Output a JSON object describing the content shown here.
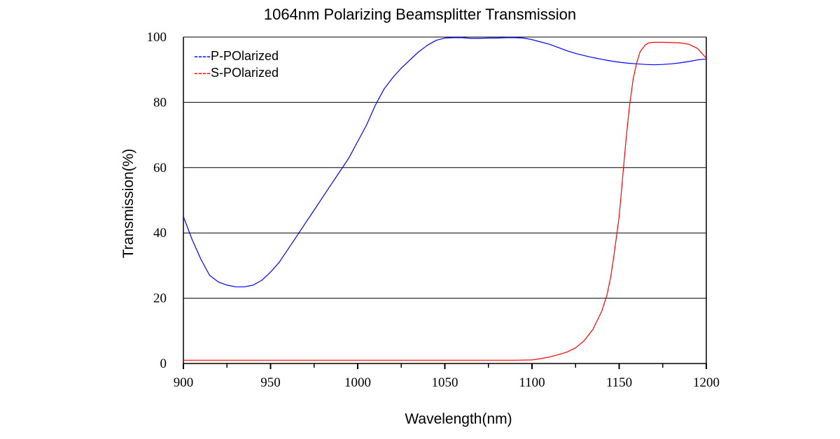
{
  "chart_data": {
    "type": "line",
    "title": "1064nm Polarizing Beamsplitter Transmission",
    "xlabel": "Wavelength(nm)",
    "ylabel": "Transmission(%)",
    "xlim": [
      900,
      1200
    ],
    "ylim": [
      0,
      100
    ],
    "xticks": [
      900,
      950,
      1000,
      1050,
      1100,
      1150,
      1200
    ],
    "yticks": [
      0,
      20,
      40,
      60,
      80,
      100
    ],
    "grid": "horizontal",
    "legend_position": "top-left",
    "series": [
      {
        "name": "P-POlarized",
        "legend_label": "----P-POlarized",
        "color": "#0000ff",
        "x": [
          900,
          905,
          910,
          915,
          920,
          925,
          930,
          935,
          940,
          945,
          950,
          955,
          960,
          965,
          970,
          975,
          980,
          985,
          990,
          995,
          1000,
          1005,
          1010,
          1015,
          1020,
          1025,
          1030,
          1035,
          1040,
          1045,
          1050,
          1055,
          1060,
          1065,
          1070,
          1075,
          1080,
          1085,
          1090,
          1095,
          1100,
          1105,
          1110,
          1115,
          1120,
          1125,
          1130,
          1135,
          1140,
          1145,
          1150,
          1155,
          1160,
          1165,
          1170,
          1175,
          1180,
          1185,
          1190,
          1195,
          1200
        ],
        "y": [
          45,
          38,
          32,
          27,
          25,
          24,
          23.5,
          23.5,
          24,
          25.5,
          28,
          31,
          35,
          39,
          43,
          47,
          51,
          55,
          59,
          63,
          68,
          73,
          79,
          84,
          87.5,
          90.5,
          93,
          95.5,
          97.5,
          99,
          99.7,
          99.8,
          99.8,
          99.6,
          99.6,
          99.7,
          99.7,
          99.8,
          99.8,
          99.7,
          99.2,
          98.5,
          97.8,
          96.8,
          95.8,
          95,
          94.3,
          93.7,
          93.2,
          92.7,
          92.3,
          92,
          91.8,
          91.6,
          91.5,
          91.6,
          91.8,
          92.1,
          92.5,
          93,
          93.3
        ]
      },
      {
        "name": "S-POlarized",
        "legend_label": "----S-POlarized",
        "color": "#ff0000",
        "x": [
          900,
          950,
          1000,
          1050,
          1090,
          1100,
          1105,
          1110,
          1115,
          1120,
          1125,
          1130,
          1135,
          1140,
          1143,
          1145,
          1147,
          1150,
          1152,
          1154,
          1156,
          1158,
          1160,
          1162,
          1165,
          1167,
          1170,
          1175,
          1180,
          1185,
          1190,
          1195,
          1200
        ],
        "y": [
          1,
          1,
          1,
          1,
          1,
          1.1,
          1.5,
          2,
          2.7,
          3.5,
          4.8,
          7,
          10.5,
          16,
          21,
          26,
          33,
          45,
          57,
          69,
          79,
          87,
          92,
          95.5,
          97.6,
          98.2,
          98.4,
          98.4,
          98.3,
          98.2,
          97.8,
          96.5,
          93.5
        ]
      }
    ]
  }
}
